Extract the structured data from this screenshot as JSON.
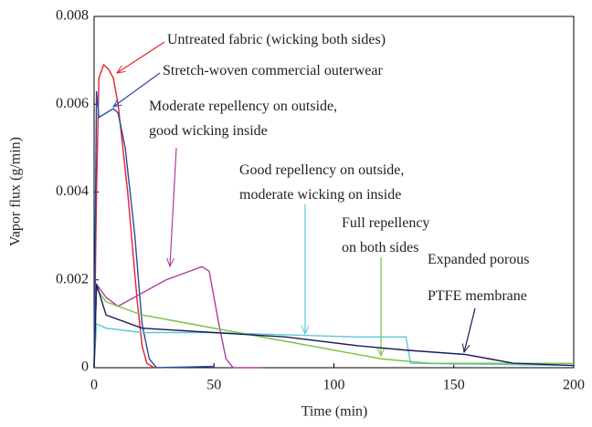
{
  "chart_data": {
    "type": "line",
    "xlabel": "Time (min)",
    "ylabel": "Vapor flux (g/min)",
    "xlim": [
      0,
      200
    ],
    "xticks": [
      0,
      50,
      100,
      150,
      200
    ],
    "ylim": [
      0,
      0.008
    ],
    "yticks": [
      0,
      0.002,
      0.004,
      0.006,
      0.008
    ],
    "series": [
      {
        "name": "Untreated fabric (wicking both sides)",
        "color": "#e8202a",
        "x": [
          0,
          1,
          2,
          4,
          6,
          8,
          10,
          14,
          18,
          20,
          22,
          25
        ],
        "values": [
          0,
          0.004,
          0.0066,
          0.0069,
          0.0068,
          0.0066,
          0.006,
          0.004,
          0.0015,
          0.0005,
          0.0001,
          0
        ]
      },
      {
        "name": "Stretch-woven commercial outerwear",
        "color": "#2a4aa0",
        "x": [
          0,
          1,
          2,
          5,
          8,
          10,
          13,
          17,
          20,
          23,
          26,
          50
        ],
        "values": [
          0,
          0.0063,
          0.0057,
          0.0058,
          0.0059,
          0.0058,
          0.005,
          0.003,
          0.001,
          0.0002,
          0,
          3e-05
        ]
      },
      {
        "name": "Moderate repellency on outside,\ngood wicking inside",
        "color": "#b03aa0",
        "x": [
          0,
          1,
          5,
          10,
          20,
          30,
          40,
          45,
          48,
          52,
          55,
          58,
          70
        ],
        "values": [
          0,
          0.0019,
          0.0016,
          0.0014,
          0.0017,
          0.002,
          0.0022,
          0.0023,
          0.0022,
          0.001,
          0.0002,
          0,
          0
        ]
      },
      {
        "name": "Good repellency on outside,\nmoderate wicking on inside",
        "color": "#5cc8d8",
        "x": [
          0,
          1,
          5,
          20,
          50,
          80,
          110,
          130,
          132,
          200
        ],
        "values": [
          0,
          0.001,
          0.0009,
          0.0008,
          0.0008,
          0.00075,
          0.0007,
          0.0007,
          0.0001,
          5e-05
        ]
      },
      {
        "name": "Full repellency\non both sides",
        "color": "#7ac143",
        "x": [
          0,
          1,
          5,
          20,
          40,
          60,
          80,
          100,
          120,
          140,
          200
        ],
        "values": [
          0,
          0.0018,
          0.0015,
          0.0012,
          0.001,
          0.0008,
          0.0006,
          0.0004,
          0.0002,
          0.0001,
          0.0001
        ]
      },
      {
        "name": "Expanded porous\nPTFE membrane",
        "color": "#1a1a5a",
        "x": [
          0,
          1,
          5,
          20,
          50,
          80,
          110,
          130,
          155,
          165,
          175,
          200
        ],
        "values": [
          0,
          0.0019,
          0.0012,
          0.0009,
          0.0008,
          0.0007,
          0.0005,
          0.0004,
          0.0003,
          0.0002,
          0.0001,
          5e-05
        ]
      }
    ]
  }
}
